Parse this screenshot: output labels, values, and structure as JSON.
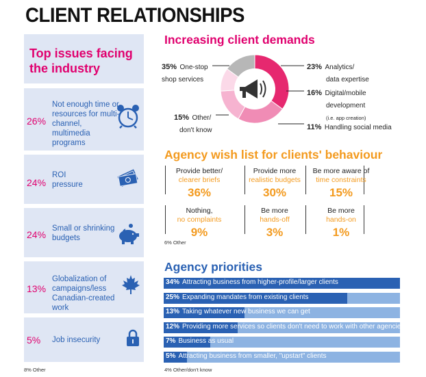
{
  "title": "CLIENT RELATIONSHIPS",
  "top_issues": {
    "heading": "Top issues facing the industry",
    "items": [
      {
        "pct": "26%",
        "label": "Not enough time or resources for multi-channel, multimedia programs",
        "icon": "alarm-clock-icon"
      },
      {
        "pct": "24%",
        "label": "ROI pressure",
        "icon": "money-icon"
      },
      {
        "pct": "24%",
        "label": "Small or shrinking budgets",
        "icon": "piggy-bank-icon"
      },
      {
        "pct": "13%",
        "label": "Globalization of campaigns/less Canadian-created work",
        "icon": "maple-leaf-icon"
      },
      {
        "pct": "5%",
        "label": "Job insecurity",
        "icon": "padlock-icon"
      }
    ],
    "footnote": "8% Other"
  },
  "demands": {
    "heading": "Increasing client demands",
    "labels": [
      {
        "pct": "35%",
        "l1": "One-stop",
        "l2": "shop services",
        "l3": ""
      },
      {
        "pct": "23%",
        "l1": "Analytics/",
        "l2": "data expertise",
        "l3": ""
      },
      {
        "pct": "16%",
        "l1": "Digital/mobile",
        "l2": "development",
        "l3": "(i.e. app creation)"
      },
      {
        "pct": "11%",
        "l1": "Handling social media",
        "l2": "",
        "l3": ""
      },
      {
        "pct": "15%",
        "l1": "Other/",
        "l2": "don't know",
        "l3": ""
      }
    ]
  },
  "wish": {
    "heading": "Agency wish list for clients' behaviour",
    "cells": [
      {
        "l1": "Provide better/",
        "l2": "clearer briefs",
        "pct": "36%"
      },
      {
        "l1": "Provide more",
        "l2": "realistic budgets",
        "pct": "30%"
      },
      {
        "l1": "Be more aware of",
        "l2": "time constraints",
        "pct": "15%"
      },
      {
        "l1": "Nothing,",
        "l2": "no complaints",
        "pct": "9%"
      },
      {
        "l1": "Be more",
        "l2": "hands-off",
        "pct": "3%"
      },
      {
        "l1": "Be more",
        "l2": "hands-on",
        "pct": "1%"
      }
    ],
    "note": "6% Other"
  },
  "priorities": {
    "heading": "Agency priorities",
    "note": "4% Other/don't know"
  },
  "colors": {
    "magenta": "#e0006e",
    "orange": "#f39a1e",
    "blue": "#2a61b3",
    "light_blue": "#8db3e2",
    "panel": "#dfe6f4",
    "donut_other": "#b7b7b7"
  },
  "chart_data": [
    {
      "type": "pie",
      "title": "Increasing client demands",
      "categories": [
        "One-stop shop services",
        "Analytics/data expertise",
        "Digital/mobile development (i.e. app creation)",
        "Handling social media",
        "Other/don't know"
      ],
      "values": [
        35,
        23,
        16,
        11,
        15
      ],
      "colors": [
        "#e6286f",
        "#f08cb5",
        "#f6b3d0",
        "#fbd9e8",
        "#b7b7b7"
      ]
    },
    {
      "type": "bar",
      "title": "Agency priorities",
      "categories": [
        "Attracting business from higher-profile/larger clients",
        "Expanding mandates from existing clients",
        "Taking whatever new business we can get",
        "Providing more services so clients don't need to work with other agencies",
        "Business as usual",
        "Attracting business from smaller, \"upstart\" clients"
      ],
      "labels": [
        "34%",
        "25%",
        "13%",
        "12%",
        "7%",
        "5%"
      ],
      "values": [
        34,
        25,
        13,
        12,
        7,
        5
      ],
      "ylim": [
        0,
        34
      ]
    }
  ]
}
